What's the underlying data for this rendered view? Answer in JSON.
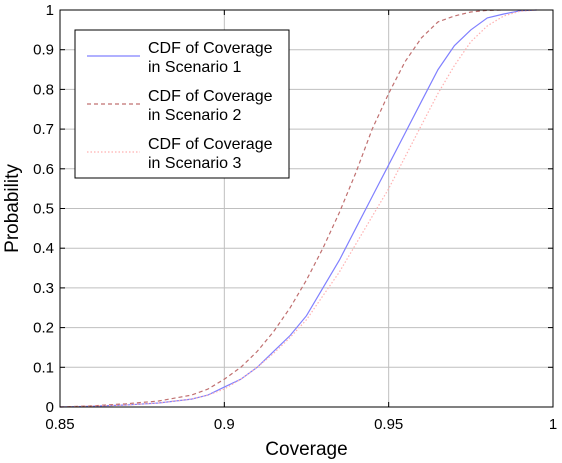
{
  "chart_data": {
    "type": "line",
    "title": "",
    "xlabel": "Coverage",
    "ylabel": "Probability",
    "xlim": [
      0.85,
      1
    ],
    "ylim": [
      0,
      1
    ],
    "xticks": [
      0.85,
      0.9,
      0.95,
      1
    ],
    "xtick_labels": [
      "0.85",
      "0.9",
      "0.95",
      "1"
    ],
    "yticks": [
      0,
      0.1,
      0.2,
      0.3,
      0.4,
      0.5,
      0.6,
      0.7,
      0.8,
      0.9,
      1
    ],
    "ytick_labels": [
      "0",
      "0.1",
      "0.2",
      "0.3",
      "0.4",
      "0.5",
      "0.6",
      "0.7",
      "0.8",
      "0.9",
      "1"
    ],
    "grid": true,
    "legend_position": "top-left",
    "series": [
      {
        "name_line1": "CDF of Coverage",
        "name_line2": "in Scenario 1",
        "color": "#8080ff",
        "dash": "solid",
        "x": [
          0.85,
          0.86,
          0.87,
          0.88,
          0.89,
          0.895,
          0.9,
          0.905,
          0.91,
          0.915,
          0.92,
          0.925,
          0.93,
          0.935,
          0.94,
          0.945,
          0.95,
          0.955,
          0.96,
          0.965,
          0.97,
          0.975,
          0.98,
          0.985,
          0.99,
          0.995
        ],
        "y": [
          0,
          0.002,
          0.005,
          0.01,
          0.02,
          0.03,
          0.05,
          0.07,
          0.1,
          0.14,
          0.18,
          0.23,
          0.3,
          0.37,
          0.45,
          0.53,
          0.61,
          0.69,
          0.77,
          0.85,
          0.91,
          0.95,
          0.98,
          0.99,
          0.998,
          1
        ]
      },
      {
        "name_line1": "CDF of Coverage",
        "name_line2": "in Scenario 2",
        "color": "#c07070",
        "dash": "dashed",
        "x": [
          0.85,
          0.86,
          0.87,
          0.88,
          0.89,
          0.895,
          0.9,
          0.905,
          0.91,
          0.915,
          0.92,
          0.925,
          0.93,
          0.935,
          0.94,
          0.945,
          0.95,
          0.955,
          0.96,
          0.965,
          0.97,
          0.975,
          0.98,
          0.985
        ],
        "y": [
          0,
          0.003,
          0.008,
          0.015,
          0.03,
          0.045,
          0.07,
          0.1,
          0.14,
          0.19,
          0.25,
          0.32,
          0.4,
          0.49,
          0.59,
          0.7,
          0.79,
          0.87,
          0.93,
          0.97,
          0.985,
          0.995,
          0.999,
          1
        ]
      },
      {
        "name_line1": "CDF of Coverage",
        "name_line2": "in Scenario 3",
        "color": "#ffb0b0",
        "dash": "dotted",
        "x": [
          0.85,
          0.86,
          0.87,
          0.88,
          0.89,
          0.895,
          0.9,
          0.905,
          0.91,
          0.915,
          0.92,
          0.925,
          0.93,
          0.935,
          0.94,
          0.945,
          0.95,
          0.955,
          0.96,
          0.965,
          0.97,
          0.975,
          0.98,
          0.985,
          0.99,
          0.995
        ],
        "y": [
          0,
          0.002,
          0.005,
          0.01,
          0.02,
          0.03,
          0.045,
          0.07,
          0.1,
          0.135,
          0.175,
          0.22,
          0.28,
          0.34,
          0.41,
          0.48,
          0.55,
          0.63,
          0.71,
          0.79,
          0.86,
          0.92,
          0.96,
          0.985,
          0.997,
          1
        ]
      }
    ]
  }
}
